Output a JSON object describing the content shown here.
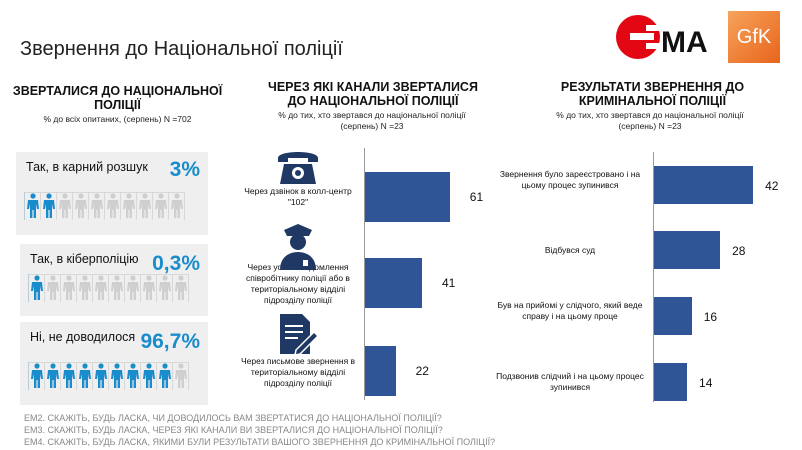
{
  "title": "Звернення до Національної поліції",
  "logos": {
    "ema": "ЄМА",
    "gfk": "GfK"
  },
  "left": {
    "heading": "ЗВЕРТАЛИСЯ ДО НАЦІОНАЛЬНОЇ ПОЛІЦІЇ",
    "subtitle": "% до всіх опитаних, (серпень) N =702",
    "cards": [
      {
        "label": "Так, в карний розшук",
        "pct": "3%",
        "filled_icons": 2
      },
      {
        "label": "Так, в кіберполіцію",
        "pct": "0,3%",
        "filled_icons": 1
      },
      {
        "label": "Ні, не доводилося",
        "pct": "96,7%",
        "filled_icons": 9
      }
    ],
    "colors": {
      "filled": "#1a8ccc",
      "empty": "#cfcfcf"
    }
  },
  "chart_data": [
    {
      "type": "bar",
      "orientation": "horizontal",
      "title": "ЧЕРЕЗ ЯКІ КАНАЛИ ЗВЕРТАЛИСЯ ДО НАЦІОНАЛЬНОЇ ПОЛІЦІЇ",
      "subtitle": "% до тих, хто звертався до національної поліції (серпень) N =23",
      "categories": [
        "Через дзвінок в колл-центр \"102\"",
        "Через усне повідомлення співробітнику поліції або в територіальному відділі підрозділу поліції",
        "Через письмове звернення в територіальному відділі підрозділу поліції"
      ],
      "icons": [
        "phone-icon",
        "police-officer-icon",
        "document-pen-icon"
      ],
      "values": [
        61,
        41,
        22
      ],
      "color": "#2f5597"
    },
    {
      "type": "bar",
      "orientation": "horizontal",
      "title": "РЕЗУЛЬТАТИ ЗВЕРНЕННЯ  ДО КРИМІНАЛЬНОЇ ПОЛІЦІЇ",
      "subtitle": "% до тих, хто звертався до національної поліції (серпень) N =23",
      "categories": [
        "Звернення було зареєстровано і на цьому процес зупинився",
        "Відбувся суд",
        "Був на прийомі у слідчого, який веде справу і на цьому проце",
        "Подзвонив слідчий і на цьому процес зупинився"
      ],
      "values": [
        42,
        28,
        16,
        14
      ],
      "color": "#2f5597"
    }
  ],
  "footnotes": [
    "ЕМ2. СКАЖІТЬ, БУДЬ ЛАСКА, ЧИ ДОВОДИЛОСЬ ВАМ ЗВЕРТАТИСЯ ДО НАЦІОНАЛЬНОЇ ПОЛІЦІЇ?",
    "ЕМ3. СКАЖІТЬ, БУДЬ ЛАСКА, ЧЕРЕЗ ЯКІ КАНАЛИ ВИ ЗВЕРТАЛИСЯ ДО НАЦІОНАЛЬНОЇ ПОЛІЦІЇ?",
    "ЕМ4. СКАЖІТЬ, БУДЬ ЛАСКА, ЯКИМИ БУЛИ РЕЗУЛЬТАТИ ВАШОГО ЗВЕРНЕННЯ  ДО КРИМІНАЛЬНОЇ ПОЛІЦІЇ?"
  ]
}
